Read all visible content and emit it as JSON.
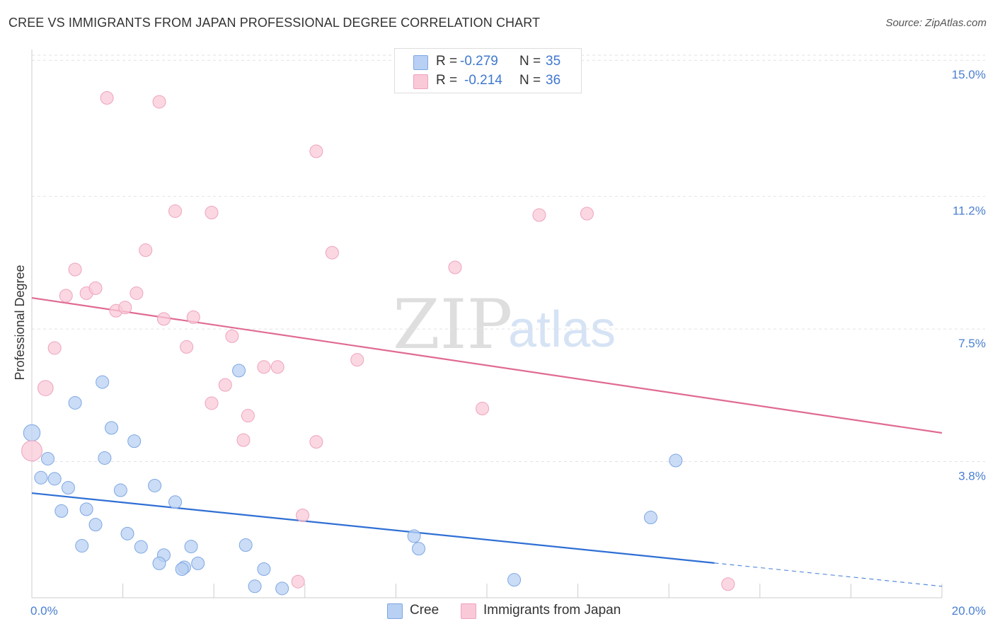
{
  "header": {
    "title": "CREE VS IMMIGRANTS FROM JAPAN PROFESSIONAL DEGREE CORRELATION CHART",
    "source": "Source: ZipAtlas.com"
  },
  "legend": {
    "items": [
      {
        "r_label": "R =",
        "r_value": "-0.279",
        "n_label": "N =",
        "n_value": "35",
        "color": "#b8d0f3",
        "stroke": "#7ea7e3"
      },
      {
        "r_label": "R =",
        "r_value": "-0.214",
        "n_label": "N =",
        "n_value": "36",
        "color": "#f9c9d8",
        "stroke": "#eea3bd"
      }
    ]
  },
  "bottom_legend": {
    "cree": "Cree",
    "japan": "Immigrants from Japan"
  },
  "watermark": {
    "zip": "ZIP",
    "atlas": "atlas"
  },
  "chart_data": {
    "type": "scatter",
    "ylabel": "Professional Degree",
    "xlim": [
      0,
      20
    ],
    "ylim": [
      0,
      15.3
    ],
    "y_ticks": [
      {
        "v": 3.8,
        "label": "3.8%"
      },
      {
        "v": 7.5,
        "label": "7.5%"
      },
      {
        "v": 11.2,
        "label": "11.2%"
      },
      {
        "v": 15.0,
        "label": "15.0%"
      }
    ],
    "x_ticks_labels": [
      {
        "v": 0,
        "label": "0.0%"
      },
      {
        "v": 20,
        "label": "20.0%"
      }
    ],
    "x_minor_ticks": [
      2,
      4,
      6,
      8,
      10,
      12,
      14,
      16,
      18,
      20
    ],
    "series": [
      {
        "name": "Cree",
        "color": "#b8d0f3",
        "stroke": "#7ea7e3",
        "line_color": "#2f6fd4",
        "trend": {
          "x1": 0,
          "y1": 2.92,
          "x2": 15.0,
          "y2": 0.97,
          "dash_to_x": 20,
          "dash_to_y": 0.32
        },
        "points": [
          {
            "x": 0.0,
            "y": 4.6,
            "s": 1.3
          },
          {
            "x": 0.35,
            "y": 3.88,
            "s": 1
          },
          {
            "x": 0.2,
            "y": 3.35,
            "s": 1
          },
          {
            "x": 0.5,
            "y": 3.32,
            "s": 1
          },
          {
            "x": 0.8,
            "y": 3.07,
            "s": 1
          },
          {
            "x": 0.65,
            "y": 2.42,
            "s": 1
          },
          {
            "x": 0.95,
            "y": 5.44,
            "s": 1
          },
          {
            "x": 1.55,
            "y": 6.02,
            "s": 1
          },
          {
            "x": 1.75,
            "y": 4.74,
            "s": 1
          },
          {
            "x": 1.6,
            "y": 3.9,
            "s": 1
          },
          {
            "x": 2.25,
            "y": 4.37,
            "s": 1
          },
          {
            "x": 1.95,
            "y": 3.0,
            "s": 1
          },
          {
            "x": 1.2,
            "y": 2.47,
            "s": 1
          },
          {
            "x": 1.4,
            "y": 2.04,
            "s": 1
          },
          {
            "x": 2.1,
            "y": 1.79,
            "s": 1
          },
          {
            "x": 1.1,
            "y": 1.45,
            "s": 1
          },
          {
            "x": 2.4,
            "y": 1.42,
            "s": 1
          },
          {
            "x": 2.7,
            "y": 3.13,
            "s": 1
          },
          {
            "x": 3.15,
            "y": 2.67,
            "s": 1
          },
          {
            "x": 2.9,
            "y": 1.19,
            "s": 1
          },
          {
            "x": 2.8,
            "y": 0.96,
            "s": 1
          },
          {
            "x": 3.5,
            "y": 1.43,
            "s": 1
          },
          {
            "x": 3.65,
            "y": 0.96,
            "s": 1
          },
          {
            "x": 3.35,
            "y": 0.85,
            "s": 1
          },
          {
            "x": 3.3,
            "y": 0.8,
            "s": 1
          },
          {
            "x": 4.55,
            "y": 6.34,
            "s": 1
          },
          {
            "x": 4.7,
            "y": 1.47,
            "s": 1
          },
          {
            "x": 5.1,
            "y": 0.8,
            "s": 1
          },
          {
            "x": 4.9,
            "y": 0.32,
            "s": 1
          },
          {
            "x": 5.5,
            "y": 0.26,
            "s": 1
          },
          {
            "x": 8.4,
            "y": 1.72,
            "s": 1
          },
          {
            "x": 8.5,
            "y": 1.37,
            "s": 1
          },
          {
            "x": 10.6,
            "y": 0.5,
            "s": 1
          },
          {
            "x": 13.6,
            "y": 2.24,
            "s": 1
          },
          {
            "x": 14.15,
            "y": 3.83,
            "s": 1
          }
        ]
      },
      {
        "name": "Immigrants from Japan",
        "color": "#f9c9d8",
        "stroke": "#eea3bd",
        "line_color": "#e06a93",
        "trend": {
          "x1": 0,
          "y1": 8.37,
          "x2": 20,
          "y2": 4.6
        },
        "points": [
          {
            "x": 0.0,
            "y": 4.1,
            "s": 1.6
          },
          {
            "x": 0.3,
            "y": 5.85,
            "s": 1.2
          },
          {
            "x": 0.5,
            "y": 6.97,
            "s": 1
          },
          {
            "x": 0.75,
            "y": 8.43,
            "s": 1
          },
          {
            "x": 0.95,
            "y": 9.16,
            "s": 1
          },
          {
            "x": 1.2,
            "y": 8.5,
            "s": 1
          },
          {
            "x": 1.4,
            "y": 8.64,
            "s": 1
          },
          {
            "x": 1.85,
            "y": 8.01,
            "s": 1
          },
          {
            "x": 2.05,
            "y": 8.1,
            "s": 1
          },
          {
            "x": 2.3,
            "y": 8.5,
            "s": 1
          },
          {
            "x": 1.65,
            "y": 13.95,
            "s": 1
          },
          {
            "x": 2.8,
            "y": 13.84,
            "s": 1
          },
          {
            "x": 2.5,
            "y": 9.7,
            "s": 1
          },
          {
            "x": 3.15,
            "y": 10.79,
            "s": 1
          },
          {
            "x": 3.95,
            "y": 10.75,
            "s": 1
          },
          {
            "x": 2.9,
            "y": 7.78,
            "s": 1
          },
          {
            "x": 3.55,
            "y": 7.83,
            "s": 1
          },
          {
            "x": 3.4,
            "y": 7.0,
            "s": 1
          },
          {
            "x": 4.4,
            "y": 7.3,
            "s": 1
          },
          {
            "x": 4.25,
            "y": 5.94,
            "s": 1
          },
          {
            "x": 3.95,
            "y": 5.43,
            "s": 1
          },
          {
            "x": 4.75,
            "y": 5.08,
            "s": 1
          },
          {
            "x": 4.65,
            "y": 4.4,
            "s": 1
          },
          {
            "x": 5.1,
            "y": 6.44,
            "s": 1
          },
          {
            "x": 5.4,
            "y": 6.44,
            "s": 1
          },
          {
            "x": 6.25,
            "y": 12.46,
            "s": 1
          },
          {
            "x": 6.6,
            "y": 9.63,
            "s": 1
          },
          {
            "x": 6.25,
            "y": 4.35,
            "s": 1
          },
          {
            "x": 5.95,
            "y": 2.3,
            "s": 1
          },
          {
            "x": 5.85,
            "y": 0.45,
            "s": 1
          },
          {
            "x": 7.15,
            "y": 6.64,
            "s": 1
          },
          {
            "x": 9.3,
            "y": 9.22,
            "s": 1
          },
          {
            "x": 9.9,
            "y": 5.28,
            "s": 1
          },
          {
            "x": 11.15,
            "y": 10.68,
            "s": 1
          },
          {
            "x": 12.2,
            "y": 10.72,
            "s": 1
          },
          {
            "x": 15.3,
            "y": 0.38,
            "s": 1
          }
        ]
      }
    ]
  }
}
